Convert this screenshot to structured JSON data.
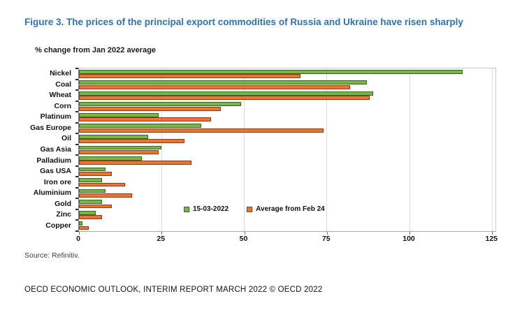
{
  "figure": {
    "title": "Figure 3. The prices of the principal export commodities of Russia and Ukraine have risen sharply",
    "subtitle": "% change from Jan 2022 average",
    "source": "Source: Refinitiv.",
    "footer": "OECD ECONOMIC OUTLOOK, INTERIM REPORT MARCH 2022 © OECD 2022"
  },
  "colors": {
    "title_blue": "#2d73b5",
    "series_green": "#76b74a",
    "series_orange": "#e97438",
    "gridline": "#dcdcdc"
  },
  "chart_data": {
    "type": "bar",
    "orientation": "horizontal",
    "title": "Figure 3. The prices of the principal export commodities of Russia and Ukraine have risen sharply",
    "ylabel_note": "% change from Jan 2022 average",
    "categories": [
      "Nickel",
      "Coal",
      "Wheat",
      "Corn",
      "Platinum",
      "Gas Europe",
      "Oil",
      "Gas Asia",
      "Palladium",
      "Gas USA",
      "Iron ore",
      "Aluminium",
      "Gold",
      "Zinc",
      "Copper"
    ],
    "series": [
      {
        "name": "15-03-2022",
        "color": "#76b74a",
        "values": [
          116,
          87,
          89,
          49,
          24,
          37,
          21,
          25,
          19,
          8,
          7,
          8,
          7,
          5,
          1
        ]
      },
      {
        "name": "Average from Feb 24",
        "color": "#e97438",
        "values": [
          67,
          82,
          88,
          43,
          40,
          74,
          32,
          24,
          34,
          10,
          14,
          16,
          10,
          7,
          3
        ]
      }
    ],
    "xlim": [
      0,
      126
    ],
    "xticks": [
      0,
      25,
      50,
      75,
      100,
      125
    ],
    "grid": true,
    "legend_position": "inside-lower-middle"
  }
}
